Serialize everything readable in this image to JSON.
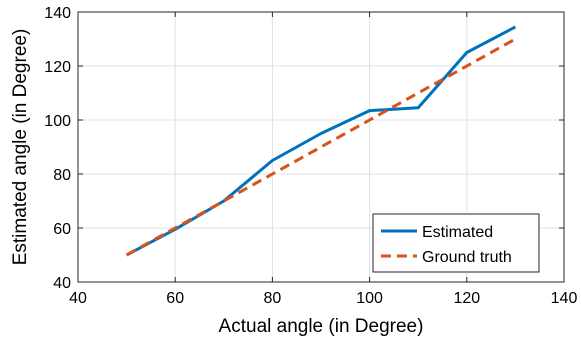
{
  "chart_data": {
    "type": "line",
    "xlabel": "Actual angle (in Degree)",
    "ylabel": "Estimated angle (in Degree)",
    "xlim": [
      40,
      140
    ],
    "ylim": [
      40,
      140
    ],
    "xticks": [
      40,
      60,
      80,
      100,
      120,
      140
    ],
    "yticks": [
      40,
      60,
      80,
      100,
      120,
      140
    ],
    "grid": true,
    "legend_position": "bottom-right",
    "series": [
      {
        "name": "Estimated",
        "color": "#0072BD",
        "style": "solid",
        "x": [
          50,
          60,
          70,
          80,
          90,
          100,
          110,
          120,
          130
        ],
        "y": [
          50,
          59.5,
          70,
          85,
          95,
          103.5,
          104.5,
          125,
          134.5
        ]
      },
      {
        "name": "Ground truth",
        "color": "#D95319",
        "style": "dashed",
        "x": [
          50,
          60,
          70,
          80,
          90,
          100,
          110,
          120,
          130
        ],
        "y": [
          50,
          60,
          70,
          80,
          90,
          100,
          110,
          120,
          130
        ]
      }
    ]
  }
}
